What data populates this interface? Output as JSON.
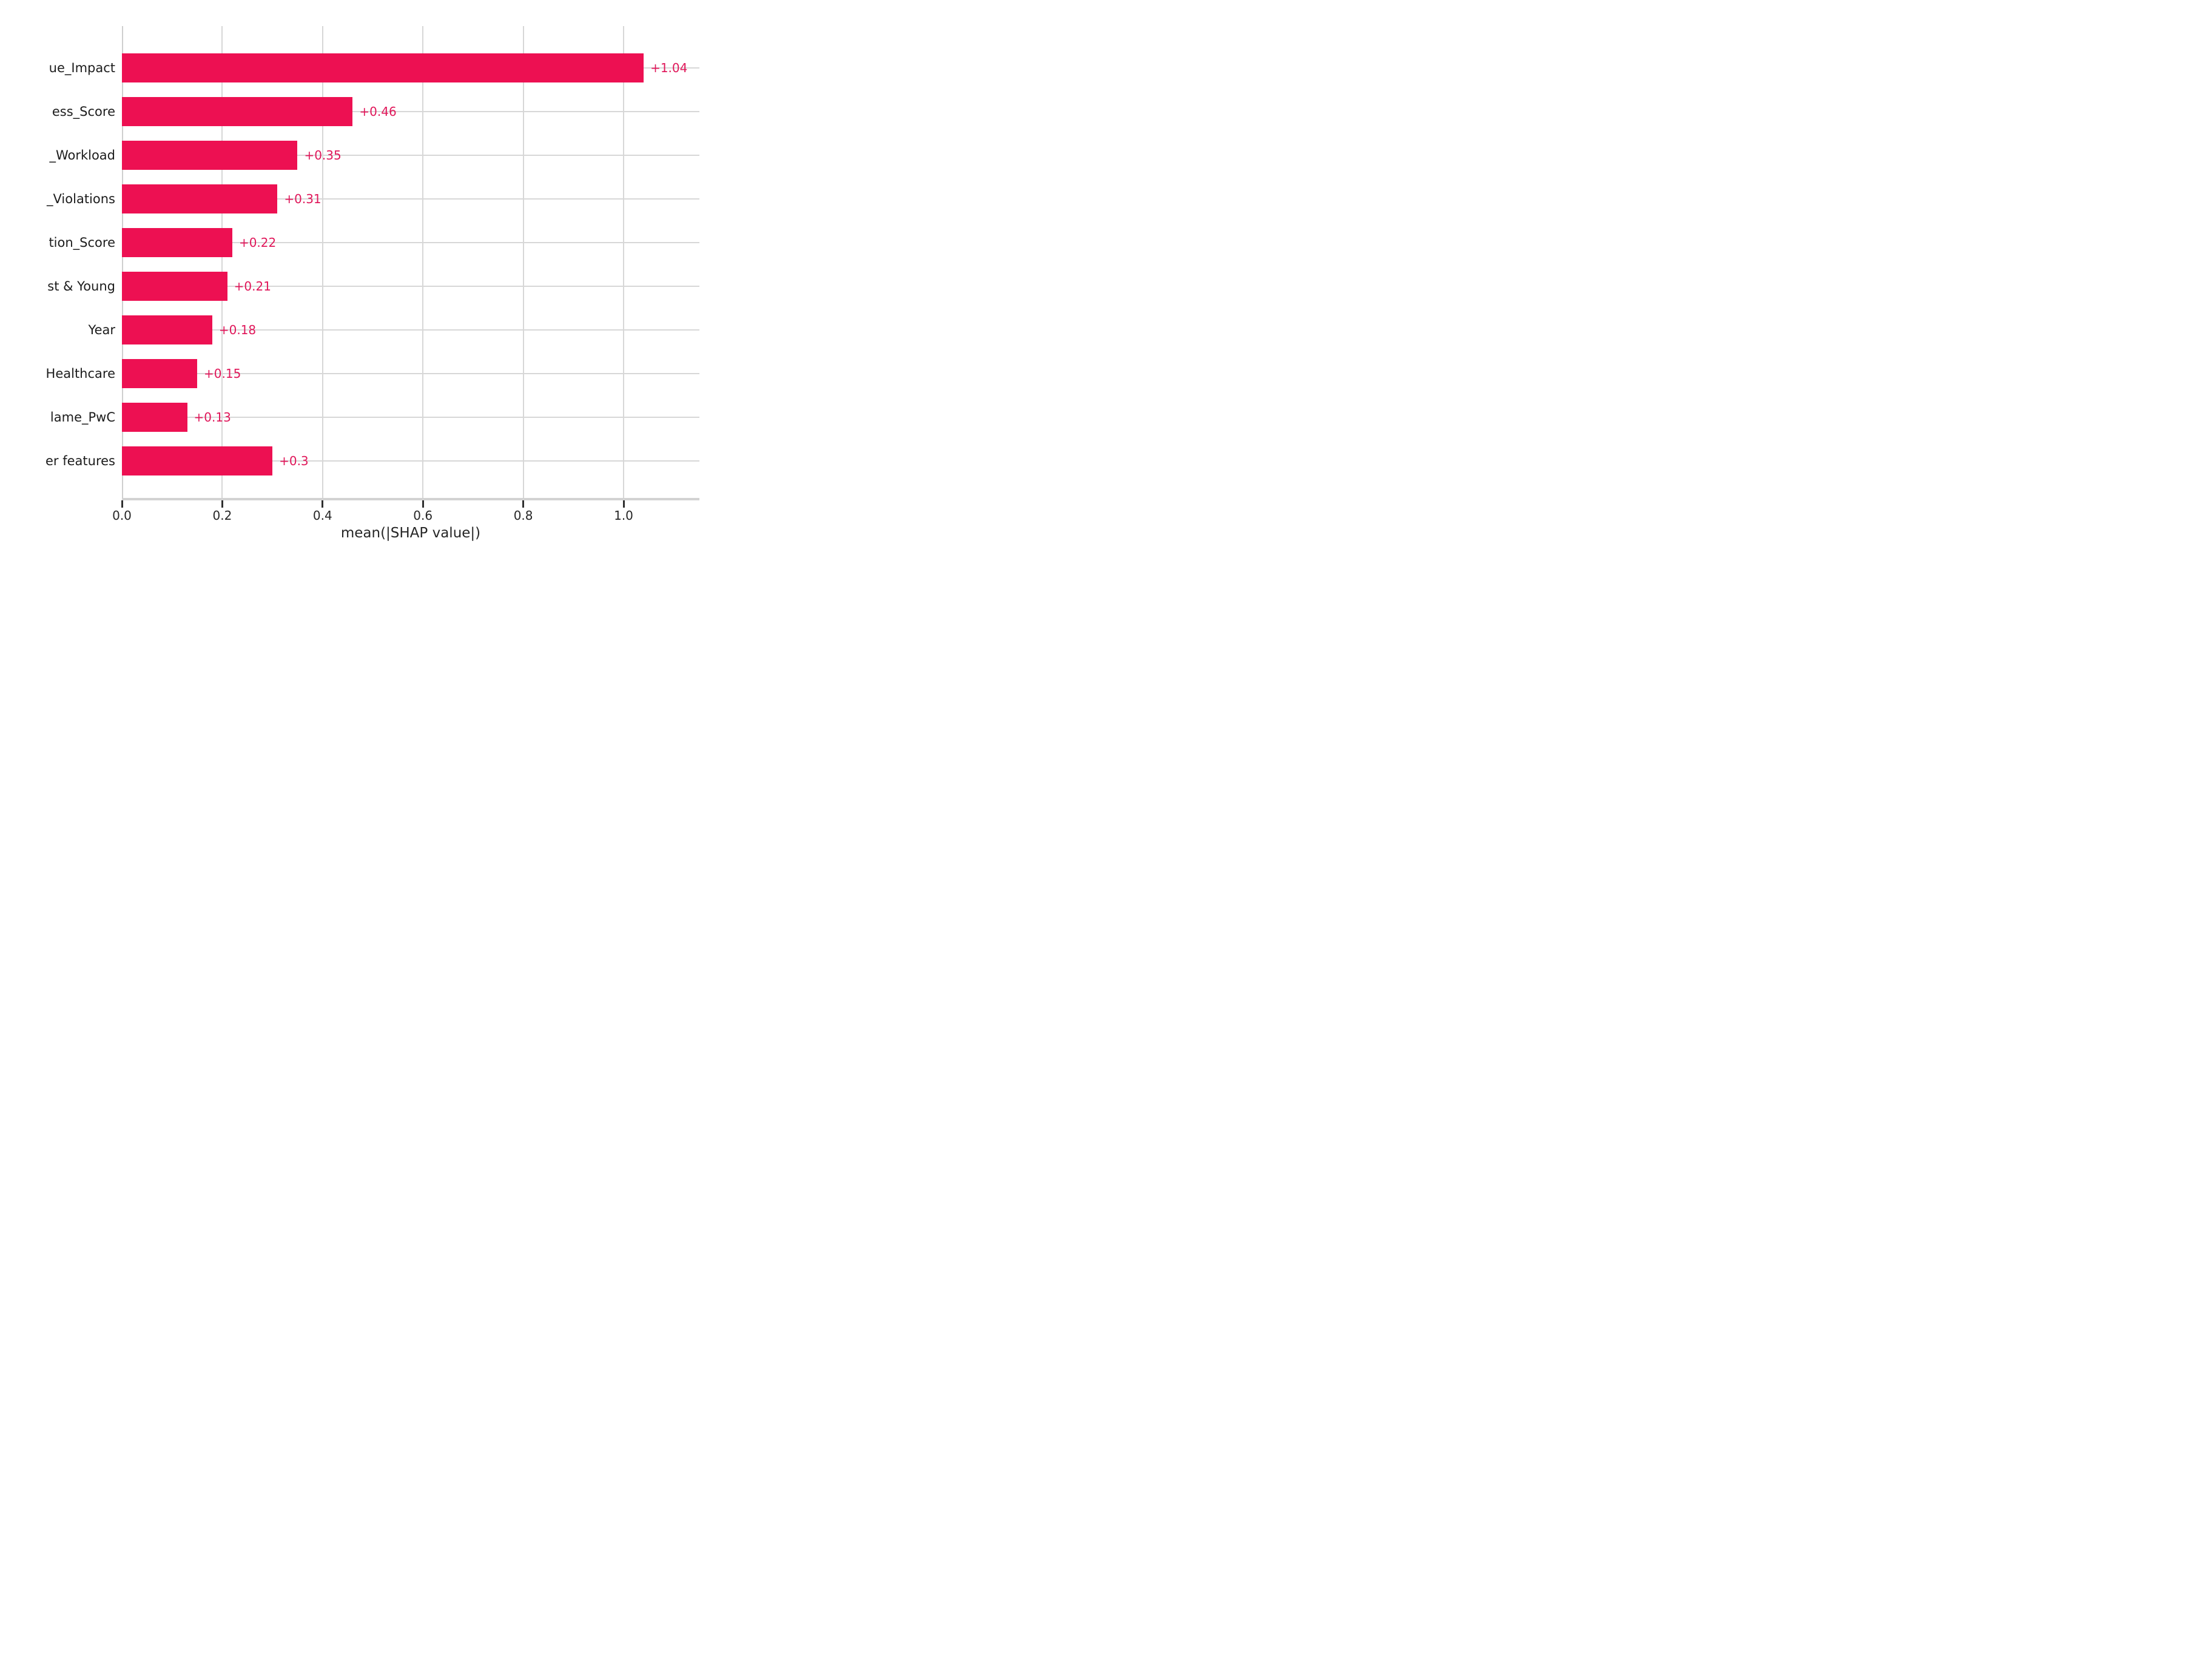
{
  "chart_data": {
    "type": "bar",
    "orientation": "horizontal",
    "title": "",
    "xlabel": "mean(|SHAP value|)",
    "ylabel": "",
    "grid": true,
    "legend": false,
    "xlim": [
      0,
      1.151
    ],
    "x_ticks": [
      0.0,
      0.2,
      0.4,
      0.6,
      0.8,
      1.0
    ],
    "x_tick_labels": [
      "0.0",
      "0.2",
      "0.4",
      "0.6",
      "0.8",
      "1.0"
    ],
    "bars": [
      {
        "label": "ue_Impact",
        "value": 1.04,
        "value_label": "+1.04"
      },
      {
        "label": "ess_Score",
        "value": 0.46,
        "value_label": "+0.46"
      },
      {
        "label": "_Workload",
        "value": 0.35,
        "value_label": "+0.35"
      },
      {
        "label": "_Violations",
        "value": 0.31,
        "value_label": "+0.31"
      },
      {
        "label": "tion_Score",
        "value": 0.22,
        "value_label": "+0.22"
      },
      {
        "label": "st & Young",
        "value": 0.21,
        "value_label": "+0.21"
      },
      {
        "label": "Year",
        "value": 0.18,
        "value_label": "+0.18"
      },
      {
        "label": "Healthcare",
        "value": 0.15,
        "value_label": "+0.15"
      },
      {
        "label": "lame_PwC",
        "value": 0.13,
        "value_label": "+0.13"
      },
      {
        "label": "er features",
        "value": 0.3,
        "value_label": "+0.3"
      }
    ],
    "colors": {
      "bar_fill": "#ed1052",
      "value_label": "#e0175a",
      "gridline": "#d7d7d7",
      "spine": "#d2d2d2",
      "tick_mark": "#2f2f2f",
      "tick_label": "#262626",
      "category_label": "#1c1c1c",
      "background": "#ffffff"
    }
  }
}
